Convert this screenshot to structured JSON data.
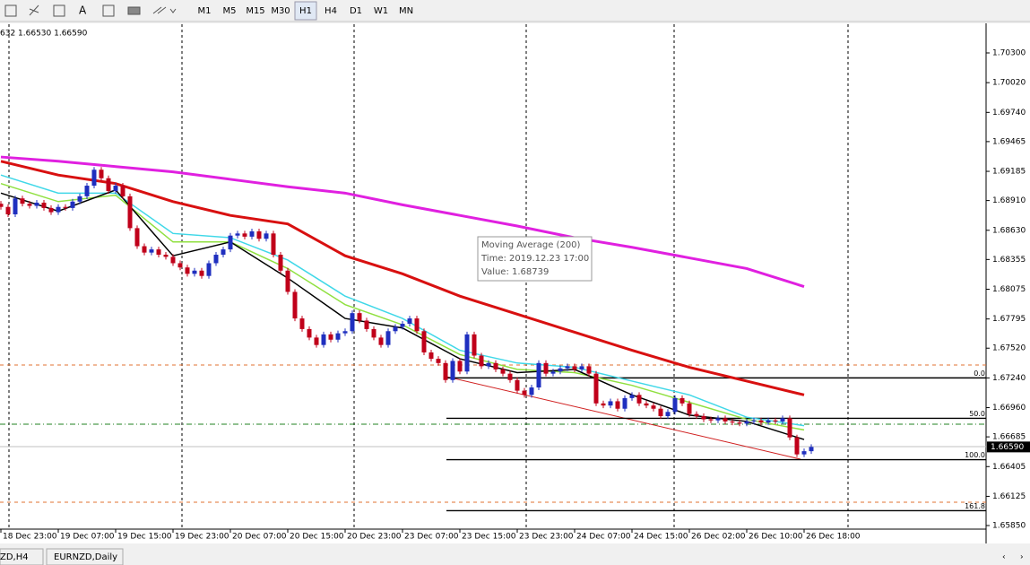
{
  "toolbar": {
    "periods": [
      "M1",
      "M5",
      "M15",
      "M30",
      "H1",
      "H4",
      "D1",
      "W1",
      "MN"
    ],
    "active": "H1"
  },
  "info_line": "632 1.66530 1.66590",
  "price_axis": {
    "labels": [
      "1.70300",
      "1.70020",
      "1.69740",
      "1.69465",
      "1.69185",
      "1.68910",
      "1.68630",
      "1.68355",
      "1.68075",
      "1.67795",
      "1.67520",
      "1.67240",
      "1.66960",
      "1.66685",
      "1.66405",
      "1.66125",
      "1.65850"
    ],
    "current_price": "1.66590"
  },
  "time_axis": {
    "labels": [
      "18 Dec 23:00",
      "19 Dec 07:00",
      "19 Dec 15:00",
      "19 Dec 23:00",
      "20 Dec 07:00",
      "20 Dec 15:00",
      "20 Dec 23:00",
      "23 Dec 07:00",
      "23 Dec 15:00",
      "23 Dec 23:00",
      "24 Dec 07:00",
      "24 Dec 15:00",
      "26 Dec 02:00",
      "26 Dec 10:00",
      "26 Dec 18:00"
    ]
  },
  "candles": {
    "bull_color": "#1f2fbf",
    "bear_color": "#c0001a",
    "first_open": 1.6888,
    "closes": [
      1.6885,
      1.6878,
      1.6893,
      1.6888,
      1.6886,
      1.6889,
      1.6884,
      1.688,
      1.6885,
      1.6884,
      1.689,
      1.6895,
      1.6905,
      1.692,
      1.6912,
      1.69,
      1.6905,
      1.6895,
      1.6865,
      1.6848,
      1.6842,
      1.6845,
      1.684,
      1.6838,
      1.6832,
      1.6828,
      1.6822,
      1.6825,
      1.682,
      1.6832,
      1.684,
      1.6845,
      1.6858,
      1.686,
      1.6857,
      1.6862,
      1.6855,
      1.686,
      1.684,
      1.6825,
      1.6805,
      1.678,
      1.677,
      1.6762,
      1.6755,
      1.6765,
      1.676,
      1.6766,
      1.6768,
      1.6785,
      1.6778,
      1.677,
      1.6762,
      1.6755,
      1.6768,
      1.6772,
      1.6775,
      1.678,
      1.6768,
      1.6748,
      1.6742,
      1.6738,
      1.6722,
      1.674,
      1.673,
      1.6765,
      1.6745,
      1.6735,
      1.6738,
      1.6732,
      1.6728,
      1.6722,
      1.6712,
      1.6708,
      1.6715,
      1.6738,
      1.6728,
      1.673,
      1.6733,
      1.6735,
      1.6732,
      1.6735,
      1.6728,
      1.67,
      1.6698,
      1.6702,
      1.6695,
      1.6705,
      1.6708,
      1.67,
      1.6698,
      1.6695,
      1.6688,
      1.6692,
      1.6705,
      1.67,
      1.669,
      1.6688,
      1.6685,
      1.6684,
      1.6686,
      1.6683,
      1.6682,
      1.6681,
      1.6683,
      1.6684,
      1.6682,
      1.6684,
      1.6683,
      1.6686,
      1.6668,
      1.6652,
      1.6655,
      1.6659
    ]
  },
  "moving_averages": [
    {
      "color": "#e020e0",
      "values": [
        1.6932,
        1.6928,
        1.6923,
        1.6918,
        1.6911,
        1.6904,
        1.6898,
        1.6887,
        1.6877,
        1.6867,
        1.6856,
        1.6847,
        1.6837,
        1.6827,
        1.681
      ]
    },
    {
      "color": "#d81010",
      "values": [
        1.6928,
        1.6915,
        1.6907,
        1.689,
        1.6877,
        1.6869,
        1.6839,
        1.6822,
        1.6801,
        1.6784,
        1.6767,
        1.675,
        1.6734,
        1.6721,
        1.6708
      ]
    },
    {
      "color": "#40d8e8",
      "values": [
        1.6915,
        1.6898,
        1.6898,
        1.686,
        1.6856,
        1.6835,
        1.6801,
        1.678,
        1.675,
        1.6738,
        1.6734,
        1.6721,
        1.6708,
        1.6687,
        1.6679
      ]
    },
    {
      "color": "#90e040",
      "values": [
        1.6907,
        1.689,
        1.6896,
        1.6852,
        1.6852,
        1.6827,
        1.6793,
        1.6774,
        1.6746,
        1.6732,
        1.6729,
        1.6717,
        1.6701,
        1.6685,
        1.6675
      ]
    },
    {
      "color": "#000000",
      "values": [
        1.6898,
        1.6881,
        1.6901,
        1.6839,
        1.6852,
        1.6818,
        1.678,
        1.6771,
        1.6742,
        1.6729,
        1.6732,
        1.6708,
        1.6689,
        1.6683,
        1.6666
      ]
    }
  ],
  "fibonacci": [
    {
      "label": "0.0",
      "price": 1.6724
    },
    {
      "label": "50.0",
      "price": 1.6686
    },
    {
      "label": "100.0",
      "price": 1.6647
    },
    {
      "label": "161.8",
      "price": 1.6599
    }
  ],
  "tooltip": {
    "lines": [
      "Moving Average (200)",
      "Time: 2019.12.23 17:00",
      "Value: 1.68739"
    ]
  },
  "tabs": [
    "ZD,H4",
    "EURNZD,Daily"
  ]
}
